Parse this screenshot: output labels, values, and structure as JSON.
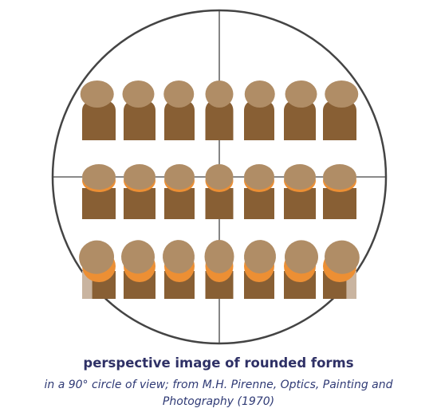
{
  "caption": {
    "title": "perspective image of rounded forms",
    "subtitle": "in a 90° circle of view; from M.H. Pirenne, Optics, Painting and Photography (1970)"
  },
  "colors": {
    "body": "#885f34",
    "head": "#b08d66",
    "glow": "#ec8f34",
    "faded_body": "#c9b4a0",
    "circle_stroke": "#444444",
    "title_text": "#2f3166",
    "subtitle_text": "#2f3a75"
  },
  "diagram": {
    "rows": [
      {
        "name": "top",
        "count": 7,
        "glow": false
      },
      {
        "name": "middle",
        "count": 7,
        "glow": true
      },
      {
        "name": "bottom",
        "count": 7,
        "glow": true
      }
    ]
  }
}
